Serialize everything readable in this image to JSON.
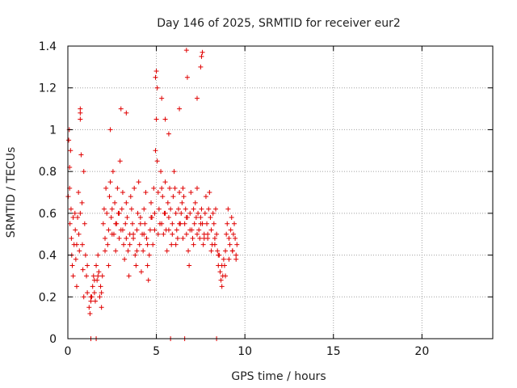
{
  "chart_data": {
    "type": "scatter",
    "title": "Day 146 of 2025, SRMTID for receiver eur2",
    "xlabel": "GPS time / hours",
    "ylabel": "SRMTID / TECUs",
    "xlim": [
      0,
      24
    ],
    "ylim": [
      0,
      1.4
    ],
    "xticks": [
      0,
      5,
      10,
      15,
      20
    ],
    "yticks": [
      0,
      0.2,
      0.4,
      0.6,
      0.8,
      1,
      1.2,
      1.4
    ],
    "xtick_labels": [
      "0",
      "5",
      "10",
      "15",
      "20"
    ],
    "ytick_labels": [
      "0",
      "0.2",
      "0.4",
      "0.6",
      "0.8",
      "1",
      "1.2",
      "1.4"
    ],
    "grid": true,
    "marker": "+",
    "series": [
      {
        "name": "SRMTID",
        "color": "#e00000",
        "x": [
          0.02,
          0.05,
          0.08,
          0.1,
          0.12,
          0.15,
          0.18,
          0.2,
          0.22,
          0.25,
          0.3,
          0.35,
          0.4,
          0.42,
          0.45,
          0.5,
          0.55,
          0.6,
          0.62,
          0.65,
          0.7,
          0.75,
          0.8,
          0.82,
          0.85,
          0.9,
          0.95,
          1.0,
          1.05,
          1.1,
          1.2,
          1.25,
          1.3,
          1.35,
          1.4,
          1.45,
          1.5,
          1.55,
          1.6,
          1.65,
          1.7,
          1.75,
          1.8,
          1.85,
          1.9,
          1.95,
          2.0,
          2.05,
          2.1,
          2.15,
          2.2,
          2.25,
          2.3,
          2.35,
          2.4,
          2.45,
          2.5,
          2.55,
          2.6,
          2.65,
          2.7,
          2.75,
          2.8,
          2.85,
          2.9,
          2.95,
          3.0,
          3.05,
          3.1,
          3.15,
          3.2,
          3.25,
          3.3,
          3.35,
          3.4,
          3.45,
          3.5,
          3.55,
          3.6,
          3.65,
          3.7,
          3.75,
          3.8,
          3.85,
          3.9,
          3.95,
          4.0,
          4.05,
          4.1,
          4.15,
          4.2,
          4.25,
          4.3,
          4.35,
          4.4,
          4.45,
          4.5,
          4.55,
          4.6,
          4.65,
          4.7,
          4.75,
          4.8,
          4.85,
          4.9,
          4.95,
          5.0,
          5.05,
          5.1,
          5.15,
          5.2,
          5.25,
          5.3,
          5.35,
          5.4,
          5.45,
          5.5,
          5.55,
          5.6,
          5.65,
          5.7,
          5.75,
          5.8,
          5.85,
          5.9,
          5.95,
          6.0,
          6.05,
          6.1,
          6.15,
          6.2,
          6.25,
          6.3,
          6.35,
          6.4,
          6.45,
          6.5,
          6.55,
          6.6,
          6.65,
          6.7,
          6.75,
          6.8,
          6.85,
          6.9,
          6.95,
          7.0,
          7.05,
          7.1,
          7.15,
          7.2,
          7.25,
          7.3,
          7.35,
          7.4,
          7.45,
          7.5,
          7.55,
          7.6,
          7.65,
          7.7,
          7.75,
          7.8,
          7.85,
          7.9,
          7.95,
          8.0,
          8.05,
          8.1,
          8.15,
          8.2,
          8.25,
          8.3,
          8.35,
          8.4,
          8.45,
          8.5,
          8.55,
          8.6,
          8.65,
          8.7,
          8.75,
          8.8,
          8.85,
          8.9,
          8.95,
          9.0,
          9.05,
          9.1,
          9.15,
          9.2,
          9.25,
          9.3,
          9.35,
          9.4,
          9.45,
          9.5,
          9.55,
          0.1,
          0.3,
          0.5,
          0.7,
          0.9,
          1.1,
          1.3,
          1.5,
          1.7,
          1.9,
          2.1,
          2.3,
          2.5,
          2.7,
          2.9,
          3.1,
          3.3,
          3.5,
          3.7,
          3.9,
          4.1,
          4.3,
          4.5,
          4.7,
          4.9,
          5.1,
          5.3,
          5.5,
          5.7,
          5.9,
          6.1,
          6.3,
          6.5,
          6.7,
          6.9,
          7.1,
          7.3,
          7.5,
          7.7,
          7.9,
          8.1,
          8.3,
          8.5,
          8.7,
          8.9,
          9.1,
          9.3,
          9.5,
          4.95,
          5.0,
          5.05,
          5.3,
          5.5,
          5.7,
          6.3,
          6.7,
          6.75,
          7.3,
          7.5,
          7.55,
          7.6,
          2.4,
          3.0,
          3.3,
          0.7,
          0.7,
          1.3,
          1.6,
          5.8,
          6.6,
          8.4
        ],
        "y": [
          0.68,
          0.95,
          1.0,
          0.72,
          0.55,
          0.9,
          0.62,
          0.48,
          0.4,
          0.35,
          0.3,
          0.45,
          0.6,
          0.52,
          0.38,
          0.25,
          0.58,
          0.7,
          0.5,
          0.42,
          1.05,
          0.88,
          0.65,
          0.45,
          0.33,
          0.2,
          0.55,
          0.4,
          0.3,
          0.22,
          0.15,
          0.12,
          0.18,
          0.2,
          0.25,
          0.3,
          0.22,
          0.18,
          0.35,
          0.28,
          0.4,
          0.32,
          0.2,
          0.25,
          0.15,
          0.3,
          0.55,
          0.62,
          0.48,
          0.72,
          0.6,
          0.45,
          0.52,
          0.68,
          0.75,
          0.58,
          0.62,
          0.8,
          0.5,
          0.65,
          0.42,
          0.55,
          0.72,
          0.6,
          0.48,
          0.85,
          0.52,
          0.62,
          0.7,
          0.45,
          0.38,
          0.55,
          0.65,
          0.58,
          0.42,
          0.3,
          0.5,
          0.68,
          0.62,
          0.55,
          0.48,
          0.72,
          0.4,
          0.35,
          0.52,
          0.6,
          0.75,
          0.45,
          0.58,
          0.32,
          0.5,
          0.42,
          0.62,
          0.55,
          0.7,
          0.48,
          0.35,
          0.28,
          0.4,
          0.52,
          0.65,
          0.58,
          0.45,
          0.72,
          0.6,
          0.9,
          1.05,
          0.85,
          0.7,
          0.62,
          0.55,
          0.8,
          0.72,
          0.68,
          0.5,
          0.6,
          0.75,
          0.52,
          0.42,
          0.65,
          0.58,
          0.72,
          0.62,
          0.45,
          0.55,
          0.68,
          0.8,
          0.72,
          0.6,
          0.52,
          0.48,
          0.62,
          0.7,
          0.55,
          0.6,
          0.65,
          0.72,
          0.68,
          0.55,
          0.62,
          0.5,
          0.58,
          0.42,
          0.35,
          0.6,
          0.7,
          0.52,
          0.48,
          0.62,
          0.55,
          0.65,
          0.58,
          0.72,
          0.6,
          0.52,
          0.48,
          0.58,
          0.62,
          0.55,
          0.45,
          0.5,
          0.6,
          0.68,
          0.55,
          0.48,
          0.62,
          0.7,
          0.58,
          0.52,
          0.45,
          0.6,
          0.55,
          0.48,
          0.62,
          0.5,
          0.42,
          0.35,
          0.4,
          0.32,
          0.28,
          0.25,
          0.3,
          0.38,
          0.35,
          0.42,
          0.5,
          0.55,
          0.62,
          0.48,
          0.45,
          0.52,
          0.58,
          0.42,
          0.5,
          0.55,
          0.48,
          0.38,
          0.45,
          0.82,
          0.58,
          0.45,
          0.6,
          0.8,
          0.35,
          0.2,
          0.28,
          0.3,
          0.22,
          0.42,
          0.35,
          0.5,
          0.55,
          0.6,
          0.52,
          0.48,
          0.45,
          0.5,
          0.42,
          0.55,
          0.5,
          0.45,
          0.58,
          0.52,
          0.5,
          0.55,
          0.6,
          0.52,
          0.5,
          0.45,
          0.55,
          0.48,
          0.58,
          0.52,
          0.45,
          0.5,
          0.55,
          0.48,
          0.5,
          0.42,
          0.45,
          0.4,
          0.35,
          0.3,
          0.38,
          0.42,
          0.4,
          1.25,
          1.28,
          1.2,
          1.15,
          1.05,
          0.98,
          1.1,
          1.38,
          1.25,
          1.15,
          1.3,
          1.35,
          1.37,
          1.0,
          1.1,
          1.08,
          1.1,
          1.08,
          0.0,
          0.0,
          0.0,
          0.0,
          0.0
        ]
      }
    ]
  }
}
